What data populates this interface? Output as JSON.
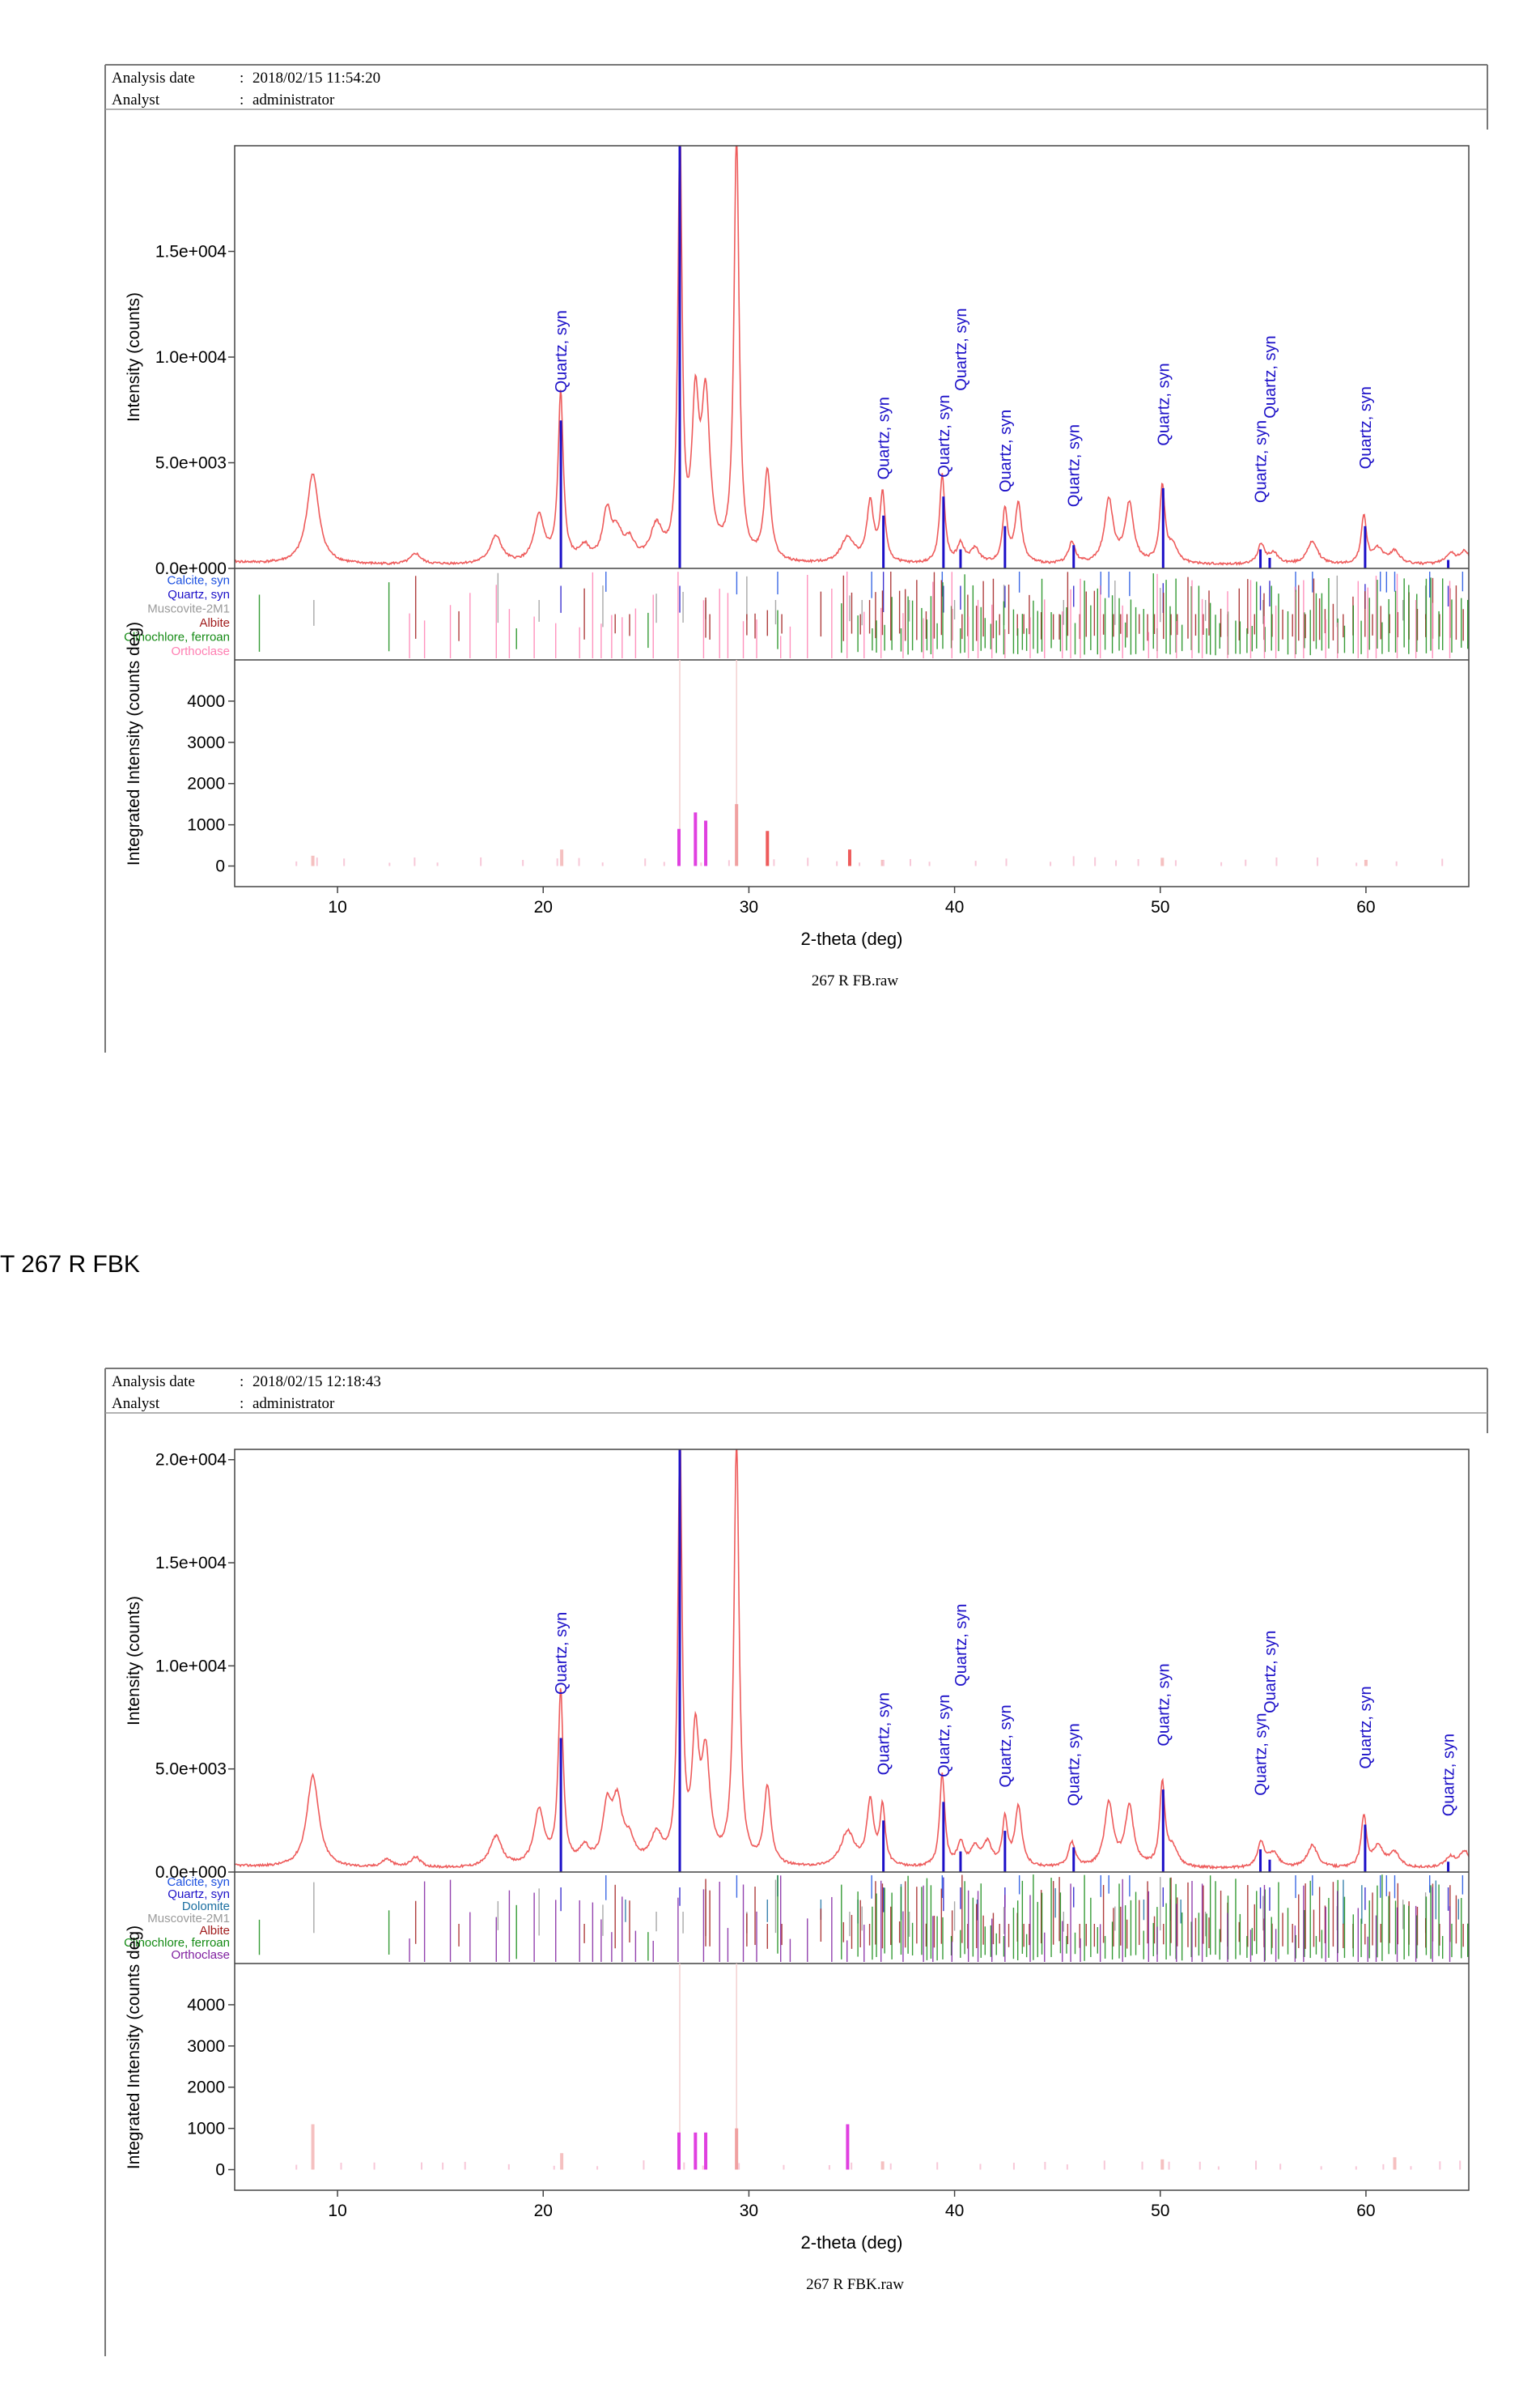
{
  "caption": "T 267 R FBK",
  "colors": {
    "pattern": "#ee5b5b",
    "quartz": "#1c10c8",
    "calcite": "#1a4fe0",
    "muscovite": "#9a9a9a",
    "albite": "#a01c1c",
    "clinochlore": "#138a13",
    "orthoclase": "#ff7fb2",
    "dolomite": "#1a6ea0",
    "orthoclase_purple": "#8020a0"
  },
  "chart_data": [
    {
      "type": "line",
      "header": {
        "date_label": "Analysis date",
        "date_value": "2018/02/15 11:54:20",
        "analyst_label": "Analyst",
        "analyst_value": "administrator"
      },
      "ylabel": "Intensity (counts)",
      "ylabel2": "Integrated Intensity (counts deg)",
      "xlabel": "2-theta (deg)",
      "filename": "267 R FB.raw",
      "xlim": [
        5,
        65
      ],
      "ylim": [
        0,
        20000
      ],
      "ylim2": [
        -500,
        5000
      ],
      "yticks": [
        {
          "v": 0,
          "label": "0.0e+000"
        },
        {
          "v": 5000,
          "label": "5.0e+003"
        },
        {
          "v": 10000,
          "label": "1.0e+004"
        },
        {
          "v": 15000,
          "label": "1.5e+004"
        }
      ],
      "yticks2": [
        {
          "v": 0,
          "label": "0"
        },
        {
          "v": 1000,
          "label": "1000"
        },
        {
          "v": 2000,
          "label": "2000"
        },
        {
          "v": 3000,
          "label": "3000"
        },
        {
          "v": 4000,
          "label": "4000"
        }
      ],
      "xticks": [
        10,
        20,
        30,
        40,
        50,
        60
      ],
      "baseline": 150,
      "peaks": [
        [
          8.8,
          4300,
          0.35
        ],
        [
          13.8,
          500,
          0.3
        ],
        [
          17.7,
          1300,
          0.35
        ],
        [
          19.8,
          2200,
          0.3
        ],
        [
          20.85,
          8000,
          0.15
        ],
        [
          22.0,
          700,
          0.3
        ],
        [
          23.1,
          2300,
          0.25
        ],
        [
          23.6,
          1200,
          0.3
        ],
        [
          24.2,
          900,
          0.3
        ],
        [
          25.5,
          1600,
          0.35
        ],
        [
          26.65,
          20000,
          0.12
        ],
        [
          27.4,
          6800,
          0.2
        ],
        [
          27.9,
          7400,
          0.25
        ],
        [
          29.4,
          20000,
          0.15
        ],
        [
          30.9,
          4300,
          0.2
        ],
        [
          34.8,
          1200,
          0.4
        ],
        [
          35.9,
          2800,
          0.2
        ],
        [
          36.5,
          3200,
          0.15
        ],
        [
          39.4,
          4200,
          0.15
        ],
        [
          40.3,
          900,
          0.2
        ],
        [
          41.0,
          700,
          0.25
        ],
        [
          42.45,
          2500,
          0.15
        ],
        [
          43.1,
          2800,
          0.2
        ],
        [
          45.7,
          1000,
          0.2
        ],
        [
          47.5,
          3000,
          0.25
        ],
        [
          48.5,
          2800,
          0.25
        ],
        [
          50.1,
          3600,
          0.15
        ],
        [
          50.6,
          800,
          0.3
        ],
        [
          54.9,
          900,
          0.2
        ],
        [
          55.5,
          500,
          0.3
        ],
        [
          57.4,
          1100,
          0.3
        ],
        [
          59.9,
          2300,
          0.15
        ],
        [
          60.6,
          700,
          0.3
        ],
        [
          61.4,
          600,
          0.3
        ],
        [
          64.1,
          500,
          0.3
        ],
        [
          64.8,
          600,
          0.3
        ]
      ],
      "quartz_lines": [
        [
          20.86,
          7000
        ],
        [
          26.64,
          20000
        ],
        [
          36.54,
          2500
        ],
        [
          39.46,
          3400
        ],
        [
          40.29,
          900
        ],
        [
          42.45,
          2000
        ],
        [
          45.79,
          1100
        ],
        [
          50.14,
          3800
        ],
        [
          54.87,
          900
        ],
        [
          55.32,
          500
        ],
        [
          59.96,
          2000
        ],
        [
          64.0,
          400
        ]
      ],
      "labels": [
        {
          "x": 20.86,
          "y": 8300,
          "text": "Quartz, syn"
        },
        {
          "x": 36.54,
          "y": 4200,
          "text": "Quartz, syn"
        },
        {
          "x": 39.46,
          "y": 4300,
          "text": "Quartz, syn"
        },
        {
          "x": 40.29,
          "y": 8400,
          "text": "Quartz, syn"
        },
        {
          "x": 42.45,
          "y": 3600,
          "text": "Quartz, syn"
        },
        {
          "x": 45.79,
          "y": 2900,
          "text": "Quartz, syn"
        },
        {
          "x": 50.14,
          "y": 5800,
          "text": "Quartz, syn"
        },
        {
          "x": 54.87,
          "y": 3100,
          "text": "Quartz, syn"
        },
        {
          "x": 55.32,
          "y": 7100,
          "text": "Quartz, syn"
        },
        {
          "x": 59.96,
          "y": 4700,
          "text": "Quartz, syn"
        }
      ],
      "phases": [
        {
          "name": "Calcite, syn",
          "color": "calcite",
          "lines": [
            23.05,
            29.41,
            31.4,
            35.97,
            39.4,
            43.15,
            47.11,
            47.5,
            48.51,
            56.58,
            57.4,
            60.7,
            61.0,
            61.4,
            63.1,
            64.7
          ]
        },
        {
          "name": "Quartz, syn",
          "color": "quartz",
          "lines": [
            20.86,
            26.64,
            36.54,
            39.46,
            40.29,
            42.45,
            45.79,
            50.14,
            54.87,
            55.32,
            59.96,
            64.0
          ]
        },
        {
          "name": "Muscovite-2M1",
          "color": "muscovite",
          "lines": [
            8.85,
            17.8,
            19.8,
            22.9,
            25.5,
            26.8,
            27.9,
            29.9,
            31.3,
            34.9,
            35.5,
            37.8,
            40.0,
            42.4,
            45.3,
            47.8,
            50.0,
            52.2,
            55.0,
            58.6,
            61.8,
            62.9
          ]
        },
        {
          "name": "Albite",
          "color": "albite",
          "lines": "dense:albite"
        },
        {
          "name": "Clinochlore, ferroan",
          "color": "clinochlore",
          "lines": "dense:chlorite"
        },
        {
          "name": "Orthoclase",
          "color": "orthoclase",
          "lines": "dense:orthoclase"
        }
      ],
      "integrated": [
        {
          "x": 8.8,
          "v": 250,
          "c": "#f5c0c0"
        },
        {
          "x": 20.9,
          "v": 400,
          "c": "#f5c0c0"
        },
        {
          "x": 26.6,
          "v": 900,
          "c": "#e040e0"
        },
        {
          "x": 27.4,
          "v": 1300,
          "c": "#e040e0"
        },
        {
          "x": 27.9,
          "v": 1100,
          "c": "#e040e0"
        },
        {
          "x": 29.4,
          "v": 1500,
          "c": "#f0a0a0"
        },
        {
          "x": 30.9,
          "v": 850,
          "c": "#ee5b5b"
        },
        {
          "x": 34.9,
          "v": 400,
          "c": "#ee5b5b"
        },
        {
          "x": 36.5,
          "v": 150,
          "c": "#f5c0c0"
        },
        {
          "x": 50.1,
          "v": 200,
          "c": "#f5c0c0"
        },
        {
          "x": 60.0,
          "v": 150,
          "c": "#f5c0c0"
        }
      ]
    },
    {
      "type": "line",
      "header": {
        "date_label": "Analysis date",
        "date_value": "2018/02/15 12:18:43",
        "analyst_label": "Analyst",
        "analyst_value": "administrator"
      },
      "ylabel": "Intensity (counts)",
      "ylabel2": "Integrated Intensity (counts deg)",
      "xlabel": "2-theta (deg)",
      "filename": "267 R FBK.raw",
      "xlim": [
        5,
        65
      ],
      "ylim": [
        0,
        20500
      ],
      "ylim2": [
        -500,
        5000
      ],
      "yticks": [
        {
          "v": 0,
          "label": "0.0e+000"
        },
        {
          "v": 5000,
          "label": "5.0e+003"
        },
        {
          "v": 10000,
          "label": "1.0e+004"
        },
        {
          "v": 15000,
          "label": "1.5e+004"
        },
        {
          "v": 20000,
          "label": "2.0e+004"
        }
      ],
      "yticks2": [
        {
          "v": 0,
          "label": "0"
        },
        {
          "v": 1000,
          "label": "1000"
        },
        {
          "v": 2000,
          "label": "2000"
        },
        {
          "v": 3000,
          "label": "3000"
        },
        {
          "v": 4000,
          "label": "4000"
        }
      ],
      "xticks": [
        10,
        20,
        30,
        40,
        50,
        60
      ],
      "baseline": 150,
      "peaks": [
        [
          8.8,
          4500,
          0.35
        ],
        [
          12.4,
          400,
          0.3
        ],
        [
          13.8,
          500,
          0.3
        ],
        [
          17.7,
          1500,
          0.35
        ],
        [
          19.8,
          2700,
          0.3
        ],
        [
          20.85,
          8400,
          0.15
        ],
        [
          22.0,
          800,
          0.3
        ],
        [
          23.1,
          2600,
          0.25
        ],
        [
          23.6,
          2900,
          0.3
        ],
        [
          24.2,
          1000,
          0.3
        ],
        [
          25.5,
          1400,
          0.35
        ],
        [
          26.65,
          20500,
          0.12
        ],
        [
          27.4,
          5800,
          0.2
        ],
        [
          27.9,
          5000,
          0.25
        ],
        [
          29.4,
          20500,
          0.15
        ],
        [
          30.9,
          3800,
          0.2
        ],
        [
          34.8,
          1700,
          0.4
        ],
        [
          35.9,
          3100,
          0.2
        ],
        [
          36.5,
          2800,
          0.15
        ],
        [
          39.4,
          4500,
          0.15
        ],
        [
          40.3,
          1100,
          0.2
        ],
        [
          41.0,
          900,
          0.25
        ],
        [
          41.6,
          1100,
          0.25
        ],
        [
          42.45,
          2300,
          0.15
        ],
        [
          43.1,
          2900,
          0.2
        ],
        [
          45.7,
          1200,
          0.2
        ],
        [
          47.5,
          3100,
          0.25
        ],
        [
          48.5,
          2900,
          0.25
        ],
        [
          50.1,
          4000,
          0.15
        ],
        [
          50.6,
          900,
          0.3
        ],
        [
          54.9,
          1200,
          0.2
        ],
        [
          55.5,
          700,
          0.3
        ],
        [
          57.4,
          1100,
          0.3
        ],
        [
          59.9,
          2500,
          0.15
        ],
        [
          60.6,
          1000,
          0.3
        ],
        [
          61.4,
          700,
          0.3
        ],
        [
          64.1,
          500,
          0.3
        ],
        [
          64.8,
          800,
          0.3
        ]
      ],
      "quartz_lines": [
        [
          20.86,
          6500
        ],
        [
          26.64,
          20500
        ],
        [
          36.54,
          2500
        ],
        [
          39.46,
          3400
        ],
        [
          40.29,
          1000
        ],
        [
          42.45,
          2000
        ],
        [
          45.79,
          1200
        ],
        [
          50.14,
          4000
        ],
        [
          54.87,
          1100
        ],
        [
          55.32,
          600
        ],
        [
          59.96,
          2300
        ],
        [
          64.0,
          500
        ]
      ],
      "labels": [
        {
          "x": 20.86,
          "y": 8600,
          "text": "Quartz, syn"
        },
        {
          "x": 36.54,
          "y": 4700,
          "text": "Quartz, syn"
        },
        {
          "x": 39.46,
          "y": 4600,
          "text": "Quartz, syn"
        },
        {
          "x": 40.29,
          "y": 9000,
          "text": "Quartz, syn"
        },
        {
          "x": 42.45,
          "y": 4100,
          "text": "Quartz, syn"
        },
        {
          "x": 45.79,
          "y": 3200,
          "text": "Quartz, syn"
        },
        {
          "x": 50.14,
          "y": 6100,
          "text": "Quartz, syn"
        },
        {
          "x": 54.87,
          "y": 3700,
          "text": "Quartz, syn"
        },
        {
          "x": 55.32,
          "y": 7700,
          "text": "Quartz, syn"
        },
        {
          "x": 59.96,
          "y": 5000,
          "text": "Quartz, syn"
        },
        {
          "x": 64.0,
          "y": 2700,
          "text": "Quartz, syn"
        }
      ],
      "phases": [
        {
          "name": "Calcite, syn",
          "color": "calcite",
          "lines": [
            23.05,
            29.41,
            31.4,
            35.97,
            39.4,
            43.15,
            47.11,
            47.5,
            48.51,
            56.58,
            57.4,
            60.7,
            61.0,
            61.4,
            63.1,
            64.7
          ]
        },
        {
          "name": "Quartz, syn",
          "color": "quartz",
          "lines": [
            20.86,
            26.64,
            36.54,
            39.46,
            40.29,
            42.45,
            45.79,
            50.14,
            54.87,
            55.32,
            59.96,
            64.0
          ]
        },
        {
          "name": "Dolomite",
          "color": "dolomite",
          "lines": [
            24.0,
            30.9,
            33.5,
            35.3,
            37.4,
            41.1,
            44.9,
            49.2,
            50.5,
            51.0,
            58.9,
            59.8,
            63.4,
            64.5
          ]
        },
        {
          "name": "Muscovite-2M1",
          "color": "muscovite",
          "lines": [
            8.85,
            17.8,
            19.8,
            22.9,
            25.5,
            26.8,
            27.9,
            29.9,
            31.3,
            34.9,
            35.5,
            37.8,
            40.0,
            42.4,
            45.3,
            47.8,
            50.0,
            52.2,
            55.0,
            58.6,
            61.8,
            62.9
          ]
        },
        {
          "name": "Albite",
          "color": "albite",
          "lines": "dense:albite"
        },
        {
          "name": "Clinochlore, ferroan",
          "color": "clinochlore",
          "lines": "dense:chlorite"
        },
        {
          "name": "Orthoclase",
          "color": "orthoclase_purple",
          "lines": "dense:orthoclase"
        }
      ],
      "integrated": [
        {
          "x": 8.8,
          "v": 1100,
          "c": "#f5c0c0"
        },
        {
          "x": 20.9,
          "v": 400,
          "c": "#f5c0c0"
        },
        {
          "x": 26.6,
          "v": 900,
          "c": "#e040e0"
        },
        {
          "x": 27.4,
          "v": 900,
          "c": "#e040e0"
        },
        {
          "x": 27.9,
          "v": 900,
          "c": "#e040e0"
        },
        {
          "x": 29.4,
          "v": 1000,
          "c": "#f0a0a0"
        },
        {
          "x": 34.8,
          "v": 1100,
          "c": "#e040e0"
        },
        {
          "x": 36.5,
          "v": 200,
          "c": "#f5c0c0"
        },
        {
          "x": 50.1,
          "v": 250,
          "c": "#f5c0c0"
        },
        {
          "x": 61.4,
          "v": 300,
          "c": "#f5c0c0"
        }
      ]
    }
  ]
}
